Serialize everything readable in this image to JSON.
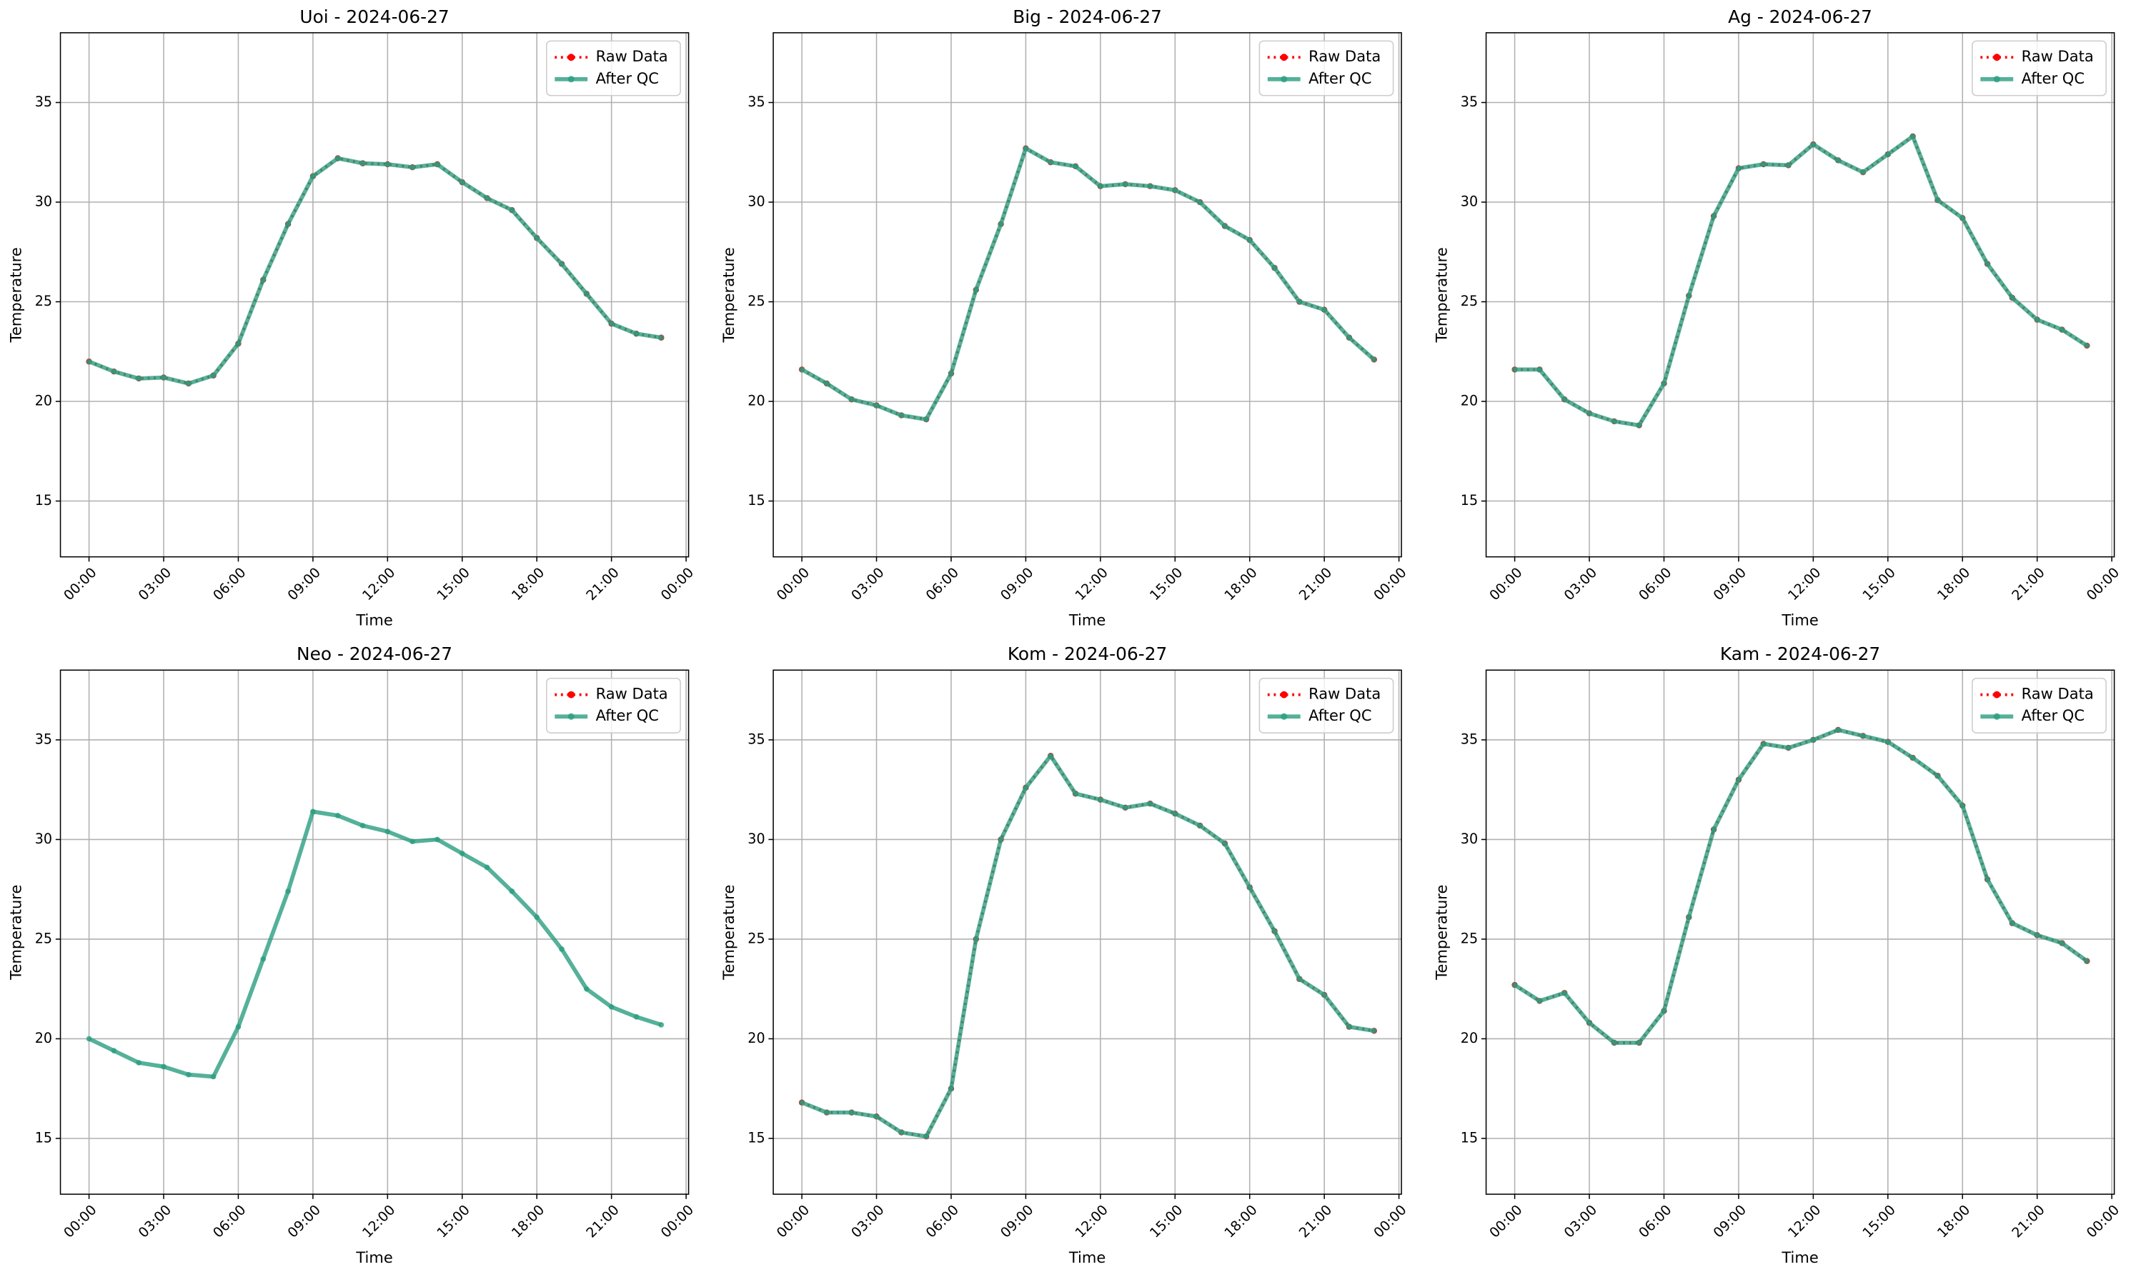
{
  "chart_data": [
    {
      "type": "line",
      "title": "Uoi - 2024-06-27",
      "xlabel": "Time",
      "ylabel": "Temperature",
      "x": [
        0,
        1,
        2,
        3,
        4,
        5,
        6,
        7,
        8,
        9,
        10,
        11,
        12,
        13,
        14,
        15,
        16,
        17,
        18,
        19,
        20,
        21,
        22,
        23
      ],
      "xlim": [
        -1.15,
        24.1
      ],
      "xticks": [
        {
          "value": 0,
          "label": "00:00"
        },
        {
          "value": 3,
          "label": "03:00"
        },
        {
          "value": 6,
          "label": "06:00"
        },
        {
          "value": 9,
          "label": "09:00"
        },
        {
          "value": 12,
          "label": "12:00"
        },
        {
          "value": 15,
          "label": "15:00"
        },
        {
          "value": 18,
          "label": "18:00"
        },
        {
          "value": 21,
          "label": "21:00"
        },
        {
          "value": 24,
          "label": "00:00"
        }
      ],
      "ylim": [
        12.2,
        38.5
      ],
      "yticks": [
        15,
        20,
        25,
        30,
        35
      ],
      "grid": true,
      "legend": "upper right",
      "series": [
        {
          "name": "Raw Data",
          "color": "#ff0000",
          "values": [
            22.0,
            21.5,
            21.15,
            21.2,
            20.9,
            21.3,
            22.9,
            26.1,
            28.9,
            31.3,
            32.2,
            31.95,
            31.9,
            31.75,
            31.9,
            31.0,
            30.2,
            29.6,
            28.2,
            26.9,
            25.4,
            23.9,
            23.4,
            23.2
          ]
        },
        {
          "name": "After QC",
          "color": "#2a9d7f",
          "values": [
            22.0,
            21.5,
            21.15,
            21.2,
            20.9,
            21.3,
            22.9,
            26.1,
            28.9,
            31.3,
            32.2,
            31.95,
            31.9,
            31.75,
            31.9,
            31.0,
            30.2,
            29.6,
            28.2,
            26.9,
            25.4,
            23.9,
            23.4,
            23.2
          ]
        }
      ]
    },
    {
      "type": "line",
      "title": "Big - 2024-06-27",
      "xlabel": "Time",
      "ylabel": "Temperature",
      "x": [
        0,
        1,
        2,
        3,
        4,
        5,
        6,
        7,
        8,
        9,
        10,
        11,
        12,
        13,
        14,
        15,
        16,
        17,
        18,
        19,
        20,
        21,
        22,
        23
      ],
      "xlim": [
        -1.15,
        24.1
      ],
      "xticks": [
        {
          "value": 0,
          "label": "00:00"
        },
        {
          "value": 3,
          "label": "03:00"
        },
        {
          "value": 6,
          "label": "06:00"
        },
        {
          "value": 9,
          "label": "09:00"
        },
        {
          "value": 12,
          "label": "12:00"
        },
        {
          "value": 15,
          "label": "15:00"
        },
        {
          "value": 18,
          "label": "18:00"
        },
        {
          "value": 21,
          "label": "21:00"
        },
        {
          "value": 24,
          "label": "00:00"
        }
      ],
      "ylim": [
        12.2,
        38.5
      ],
      "yticks": [
        15,
        20,
        25,
        30,
        35
      ],
      "grid": true,
      "legend": "upper right",
      "series": [
        {
          "name": "Raw Data",
          "color": "#ff0000",
          "values": [
            21.6,
            20.9,
            20.1,
            19.8,
            19.3,
            19.1,
            21.4,
            25.6,
            28.9,
            32.7,
            32.0,
            31.8,
            30.8,
            30.9,
            30.8,
            30.6,
            30.0,
            28.8,
            28.1,
            26.7,
            25.0,
            24.6,
            23.2,
            22.1
          ]
        },
        {
          "name": "After QC",
          "color": "#2a9d7f",
          "values": [
            21.6,
            20.9,
            20.1,
            19.8,
            19.3,
            19.1,
            21.4,
            25.6,
            28.9,
            32.7,
            32.0,
            31.8,
            30.8,
            30.9,
            30.8,
            30.6,
            30.0,
            28.8,
            28.1,
            26.7,
            25.0,
            24.6,
            23.2,
            22.1
          ]
        }
      ]
    },
    {
      "type": "line",
      "title": "Ag - 2024-06-27",
      "xlabel": "Time",
      "ylabel": "Temperature",
      "x": [
        0,
        1,
        2,
        3,
        4,
        5,
        6,
        7,
        8,
        9,
        10,
        11,
        12,
        13,
        14,
        15,
        16,
        17,
        18,
        19,
        20,
        21,
        22,
        23
      ],
      "xlim": [
        -1.15,
        24.1
      ],
      "xticks": [
        {
          "value": 0,
          "label": "00:00"
        },
        {
          "value": 3,
          "label": "03:00"
        },
        {
          "value": 6,
          "label": "06:00"
        },
        {
          "value": 9,
          "label": "09:00"
        },
        {
          "value": 12,
          "label": "12:00"
        },
        {
          "value": 15,
          "label": "15:00"
        },
        {
          "value": 18,
          "label": "18:00"
        },
        {
          "value": 21,
          "label": "21:00"
        },
        {
          "value": 24,
          "label": "00:00"
        }
      ],
      "ylim": [
        12.2,
        38.5
      ],
      "yticks": [
        15,
        20,
        25,
        30,
        35
      ],
      "grid": true,
      "legend": "upper right",
      "series": [
        {
          "name": "Raw Data",
          "color": "#ff0000",
          "values": [
            21.6,
            21.6,
            20.1,
            19.4,
            19.0,
            18.8,
            20.9,
            25.3,
            29.3,
            31.7,
            31.9,
            31.85,
            32.9,
            32.1,
            31.5,
            32.4,
            33.3,
            30.1,
            29.2,
            26.9,
            25.2,
            24.1,
            23.6,
            22.8
          ]
        },
        {
          "name": "After QC",
          "color": "#2a9d7f",
          "values": [
            21.6,
            21.6,
            20.1,
            19.4,
            19.0,
            18.8,
            20.9,
            25.3,
            29.3,
            31.7,
            31.9,
            31.85,
            32.9,
            32.1,
            31.5,
            32.4,
            33.3,
            30.1,
            29.2,
            26.9,
            25.2,
            24.1,
            23.6,
            22.8
          ]
        }
      ]
    },
    {
      "type": "line",
      "title": "Neo - 2024-06-27",
      "xlabel": "Time",
      "ylabel": "Temperature",
      "x": [
        0,
        1,
        2,
        3,
        4,
        5,
        6,
        7,
        8,
        9,
        10,
        11,
        12,
        13,
        14,
        15,
        16,
        17,
        18,
        19,
        20,
        21,
        22,
        23
      ],
      "xlim": [
        -1.15,
        24.1
      ],
      "xticks": [
        {
          "value": 0,
          "label": "00:00"
        },
        {
          "value": 3,
          "label": "03:00"
        },
        {
          "value": 6,
          "label": "06:00"
        },
        {
          "value": 9,
          "label": "09:00"
        },
        {
          "value": 12,
          "label": "12:00"
        },
        {
          "value": 15,
          "label": "15:00"
        },
        {
          "value": 18,
          "label": "18:00"
        },
        {
          "value": 21,
          "label": "21:00"
        },
        {
          "value": 24,
          "label": "00:00"
        }
      ],
      "ylim": [
        12.2,
        38.5
      ],
      "yticks": [
        15,
        20,
        25,
        30,
        35
      ],
      "grid": true,
      "legend": "upper right",
      "series": [
        {
          "name": "Raw Data",
          "color": "#ff0000",
          "values": [
            null,
            null,
            null,
            null,
            null,
            null,
            null,
            null,
            null,
            null,
            null,
            null,
            null,
            null,
            null,
            null,
            null,
            null,
            null,
            null,
            null,
            null,
            null,
            null
          ]
        },
        {
          "name": "After QC",
          "color": "#2a9d7f",
          "values": [
            20.0,
            19.4,
            18.8,
            18.6,
            18.2,
            18.1,
            20.6,
            24.0,
            27.4,
            31.4,
            31.2,
            30.7,
            30.4,
            29.9,
            30.0,
            29.3,
            28.6,
            27.4,
            26.1,
            24.5,
            22.5,
            21.6,
            21.1,
            20.7
          ]
        }
      ]
    },
    {
      "type": "line",
      "title": "Kom - 2024-06-27",
      "xlabel": "Time",
      "ylabel": "Temperature",
      "x": [
        0,
        1,
        2,
        3,
        4,
        5,
        6,
        7,
        8,
        9,
        10,
        11,
        12,
        13,
        14,
        15,
        16,
        17,
        18,
        19,
        20,
        21,
        22,
        23
      ],
      "xlim": [
        -1.15,
        24.1
      ],
      "xticks": [
        {
          "value": 0,
          "label": "00:00"
        },
        {
          "value": 3,
          "label": "03:00"
        },
        {
          "value": 6,
          "label": "06:00"
        },
        {
          "value": 9,
          "label": "09:00"
        },
        {
          "value": 12,
          "label": "12:00"
        },
        {
          "value": 15,
          "label": "15:00"
        },
        {
          "value": 18,
          "label": "18:00"
        },
        {
          "value": 21,
          "label": "21:00"
        },
        {
          "value": 24,
          "label": "00:00"
        }
      ],
      "ylim": [
        12.2,
        38.5
      ],
      "yticks": [
        15,
        20,
        25,
        30,
        35
      ],
      "grid": true,
      "legend": "upper right",
      "series": [
        {
          "name": "Raw Data",
          "color": "#ff0000",
          "values": [
            16.8,
            16.3,
            16.3,
            16.1,
            15.3,
            15.1,
            17.5,
            25.0,
            30.0,
            32.6,
            34.2,
            32.3,
            32.0,
            31.6,
            31.8,
            31.3,
            30.7,
            29.8,
            27.6,
            25.4,
            23.0,
            22.2,
            20.6,
            20.4
          ]
        },
        {
          "name": "After QC",
          "color": "#2a9d7f",
          "values": [
            16.8,
            16.3,
            16.3,
            16.1,
            15.3,
            15.1,
            17.5,
            25.0,
            30.0,
            32.6,
            34.2,
            32.3,
            32.0,
            31.6,
            31.8,
            31.3,
            30.7,
            29.8,
            27.6,
            25.4,
            23.0,
            22.2,
            20.6,
            20.4
          ]
        }
      ]
    },
    {
      "type": "line",
      "title": "Kam - 2024-06-27",
      "xlabel": "Time",
      "ylabel": "Temperature",
      "x": [
        0,
        1,
        2,
        3,
        4,
        5,
        6,
        7,
        8,
        9,
        10,
        11,
        12,
        13,
        14,
        15,
        16,
        17,
        18,
        19,
        20,
        21,
        22,
        23
      ],
      "xlim": [
        -1.15,
        24.1
      ],
      "xticks": [
        {
          "value": 0,
          "label": "00:00"
        },
        {
          "value": 3,
          "label": "03:00"
        },
        {
          "value": 6,
          "label": "06:00"
        },
        {
          "value": 9,
          "label": "09:00"
        },
        {
          "value": 12,
          "label": "12:00"
        },
        {
          "value": 15,
          "label": "15:00"
        },
        {
          "value": 18,
          "label": "18:00"
        },
        {
          "value": 21,
          "label": "21:00"
        },
        {
          "value": 24,
          "label": "00:00"
        }
      ],
      "ylim": [
        12.2,
        38.5
      ],
      "yticks": [
        15,
        20,
        25,
        30,
        35
      ],
      "grid": true,
      "legend": "upper right",
      "series": [
        {
          "name": "Raw Data",
          "color": "#ff0000",
          "values": [
            22.7,
            21.9,
            22.3,
            20.8,
            19.8,
            19.8,
            21.4,
            26.1,
            30.5,
            33.0,
            34.8,
            34.6,
            35.0,
            35.5,
            35.2,
            34.9,
            34.1,
            33.2,
            31.7,
            28.0,
            25.8,
            25.2,
            24.8,
            23.9
          ]
        },
        {
          "name": "After QC",
          "color": "#2a9d7f",
          "values": [
            22.7,
            21.9,
            22.3,
            20.8,
            19.8,
            19.8,
            21.4,
            26.1,
            30.5,
            33.0,
            34.8,
            34.6,
            35.0,
            35.5,
            35.2,
            34.9,
            34.1,
            33.2,
            31.7,
            28.0,
            25.8,
            25.2,
            24.8,
            23.9
          ]
        }
      ]
    }
  ]
}
